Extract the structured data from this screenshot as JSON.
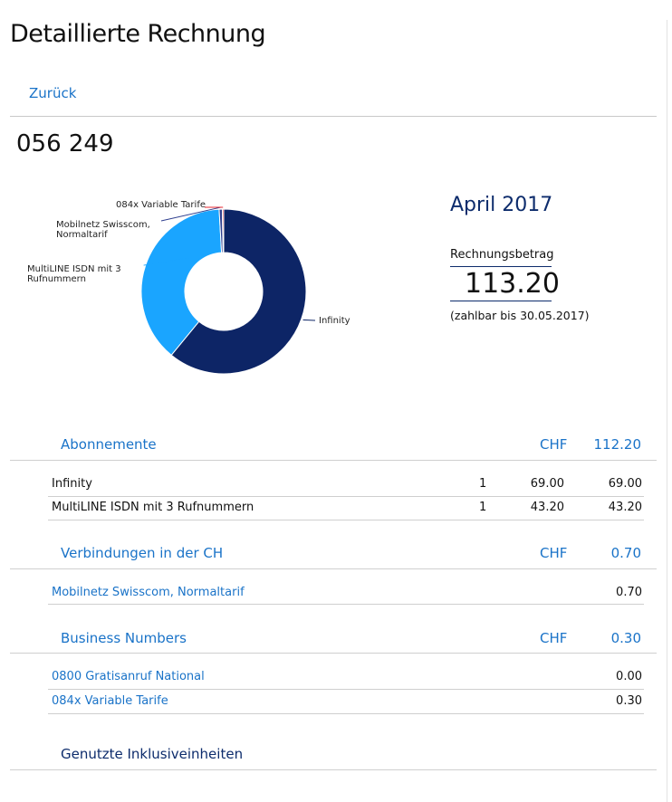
{
  "page": {
    "title": "Detaillierte Rechnung",
    "back_label": "Zurück",
    "account_number": "056 249"
  },
  "summary": {
    "period": "April 2017",
    "amount_label": "Rechnungsbetrag",
    "amount": "113.20",
    "due_text": "(zahlbar bis 30.05.2017)"
  },
  "chart_data": {
    "type": "pie",
    "donut": true,
    "categories": [
      "Infinity",
      "MultiLINE ISDN mit 3 Rufnummern",
      "Mobilnetz Swisscom, Normaltarif",
      "0800 Gratisanruf National",
      "084x Variable Tarife"
    ],
    "values": [
      69.0,
      43.2,
      0.7,
      0.0,
      0.3
    ],
    "labels": [
      [
        "Infinity"
      ],
      [
        "MultiLINE ISDN mit 3",
        "Rufnummern"
      ],
      [
        "Mobilnetz Swisscom,",
        "Normaltarif"
      ],
      [],
      [
        "084x Variable Tarife"
      ]
    ],
    "colors": [
      "#0d2566",
      "#1aa5ff",
      "#2f3f8f",
      "#888888",
      "#e8262e"
    ],
    "label_color": "#222222",
    "legend": "none"
  },
  "sections": [
    {
      "title": "Abonnemente",
      "currency": "CHF",
      "total": "112.20",
      "rows": [
        {
          "label": "Infinity",
          "qty": "1",
          "price": "69.00",
          "amount": "69.00"
        },
        {
          "label": "MultiLINE ISDN mit 3 Rufnummern",
          "qty": "1",
          "price": "43.20",
          "amount": "43.20"
        }
      ]
    },
    {
      "title": "Verbindungen in der CH",
      "currency": "CHF",
      "total": "0.70",
      "rows": [
        {
          "label": "Mobilnetz Swisscom, Normaltarif",
          "amount": "0.70"
        }
      ]
    },
    {
      "title": "Business Numbers",
      "currency": "CHF",
      "total": "0.30",
      "rows": [
        {
          "label": "0800 Gratisanruf National",
          "amount": "0.00"
        },
        {
          "label": "084x Variable Tarife",
          "amount": "0.30"
        }
      ]
    },
    {
      "title": "Genutzte Inklusiveinheiten"
    }
  ]
}
